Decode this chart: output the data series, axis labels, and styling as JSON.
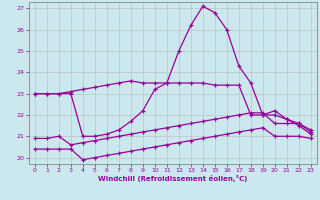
{
  "xlabel": "Windchill (Refroidissement éolien,°C)",
  "x": [
    0,
    1,
    2,
    3,
    4,
    5,
    6,
    7,
    8,
    9,
    10,
    11,
    12,
    13,
    14,
    15,
    16,
    17,
    18,
    19,
    20,
    21,
    22,
    23
  ],
  "y_main": [
    23.0,
    23.0,
    23.0,
    23.0,
    21.0,
    21.0,
    21.1,
    21.3,
    21.7,
    22.2,
    23.2,
    23.5,
    25.0,
    26.2,
    27.1,
    26.8,
    26.0,
    24.3,
    23.5,
    22.0,
    22.2,
    21.8,
    21.5,
    21.1
  ],
  "y_upper": [
    23.0,
    23.0,
    23.0,
    23.1,
    23.2,
    23.3,
    23.4,
    23.5,
    23.6,
    23.5,
    23.5,
    23.5,
    23.5,
    23.5,
    23.5,
    23.4,
    23.4,
    23.4,
    22.0,
    22.0,
    22.0,
    21.8,
    21.6,
    21.3
  ],
  "y_mid": [
    20.9,
    20.9,
    21.0,
    20.6,
    20.7,
    20.8,
    20.9,
    21.0,
    21.1,
    21.2,
    21.3,
    21.4,
    21.5,
    21.6,
    21.7,
    21.8,
    21.9,
    22.0,
    22.1,
    22.1,
    21.6,
    21.6,
    21.6,
    21.2
  ],
  "y_lower": [
    20.4,
    20.4,
    20.4,
    20.4,
    19.9,
    20.0,
    20.1,
    20.2,
    20.3,
    20.4,
    20.5,
    20.6,
    20.7,
    20.8,
    20.9,
    21.0,
    21.1,
    21.2,
    21.3,
    21.4,
    21.0,
    21.0,
    21.0,
    20.9
  ],
  "background_color": "#cce8ef",
  "line_color": "#990099",
  "grid_color": "#bbbbbb",
  "ymin": 19.7,
  "ymax": 27.3,
  "xmin": -0.5,
  "xmax": 23.5
}
